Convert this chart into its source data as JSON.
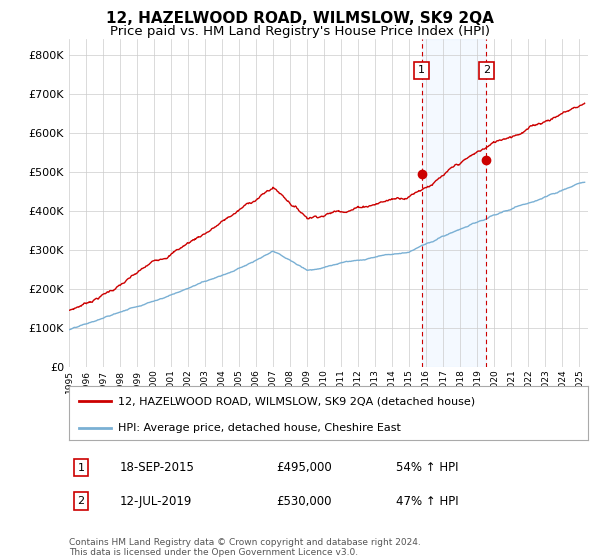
{
  "title": "12, HAZELWOOD ROAD, WILMSLOW, SK9 2QA",
  "subtitle": "Price paid vs. HM Land Registry's House Price Index (HPI)",
  "ytick_vals": [
    0,
    100000,
    200000,
    300000,
    400000,
    500000,
    600000,
    700000,
    800000
  ],
  "ylim": [
    0,
    840000
  ],
  "xlim_start": 1995,
  "xlim_end": 2025.5,
  "sale1_x": 2015.72,
  "sale1_y": 495000,
  "sale1_label": "1",
  "sale1_date": "18-SEP-2015",
  "sale1_price": "£495,000",
  "sale1_hpi": "54% ↑ HPI",
  "sale2_x": 2019.53,
  "sale2_y": 530000,
  "sale2_label": "2",
  "sale2_date": "12-JUL-2019",
  "sale2_price": "£530,000",
  "sale2_hpi": "47% ↑ HPI",
  "line1_color": "#cc0000",
  "line2_color": "#7ab0d4",
  "shade_color": "#ddeeff",
  "grid_color": "#cccccc",
  "legend1_text": "12, HAZELWOOD ROAD, WILMSLOW, SK9 2QA (detached house)",
  "legend2_text": "HPI: Average price, detached house, Cheshire East",
  "footer": "Contains HM Land Registry data © Crown copyright and database right 2024.\nThis data is licensed under the Open Government Licence v3.0.",
  "title_fontsize": 11,
  "subtitle_fontsize": 9.5,
  "background_color": "#ffffff"
}
